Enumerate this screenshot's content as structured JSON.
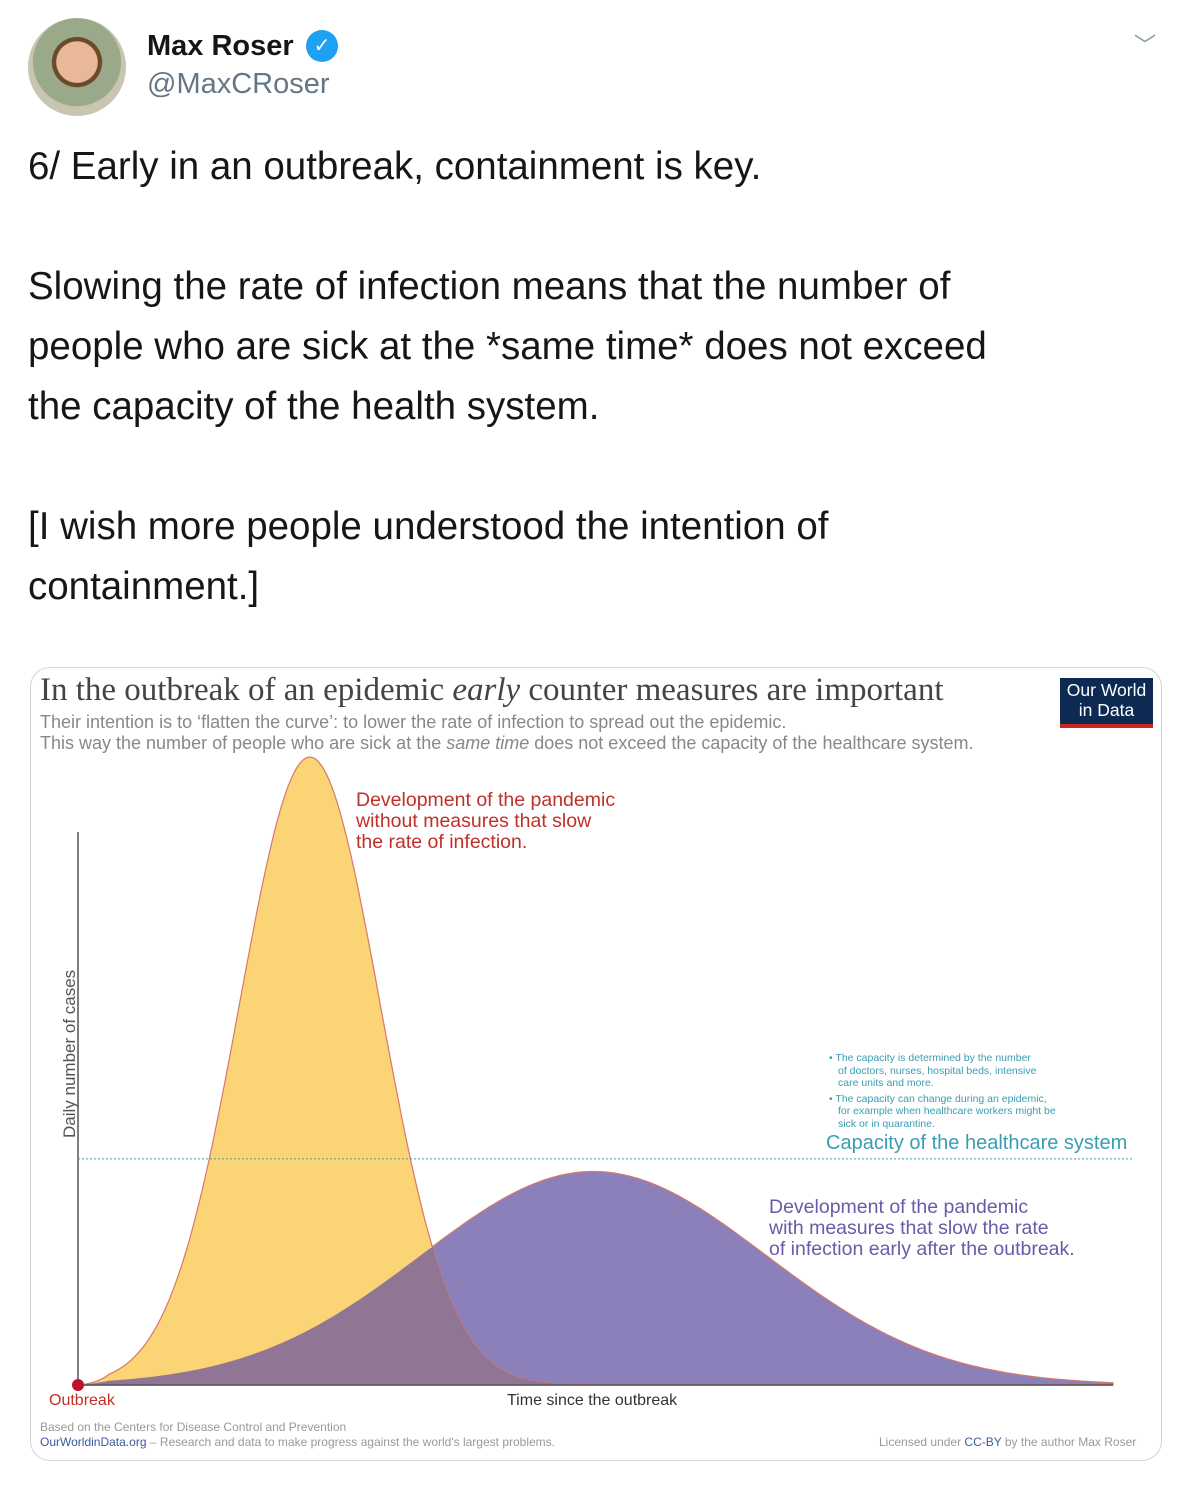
{
  "tweet": {
    "author_name": "Max Roser",
    "handle": "@MaxCRoser",
    "verified_icon": "verified-badge-icon",
    "menu_icon": "chevron-down-icon",
    "lines": [
      "6/ Early in an outbreak, containment is key.",
      "Slowing the rate of infection means that the number of",
      "people who are sick at the *same time* does not exceed",
      "the capacity of the health system.",
      "[I wish more people understood the intention of",
      "containment.]"
    ]
  },
  "chart": {
    "title_pre": "In the outbreak of an epidemic ",
    "title_em": "early",
    "title_post": " counter measures are important",
    "subtitle1": "Their intention is to ‘flatten the curve’: to lower the rate of infection to spread out the epidemic.",
    "subtitle2_pre": "This way the number of people who are sick at the ",
    "subtitle2_em": "same time",
    "subtitle2_post": " does not exceed the capacity of the healthcare system.",
    "logo_line1": "Our World",
    "logo_line2": "in Data",
    "without_label": [
      "Development of the pandemic",
      "without measures that slow",
      "the rate of infection."
    ],
    "with_label": [
      "Development of the pandemic",
      "with measures that slow the rate",
      "of infection early after the outbreak."
    ],
    "capacity_notes": [
      "• The capacity is determined by the number",
      "of doctors, nurses, hospital beds, intensive",
      "care units and more.",
      "• The capacity can change during an epidemic,",
      "for example when healthcare workers might be",
      "sick or in quarantine."
    ],
    "capacity_label": "Capacity of the healthcare system",
    "outbreak_label": "Outbreak",
    "source": "Based on the Centers for Disease Control and Prevention",
    "owid_link": "OurWorldinData.org",
    "owid_tagline": " – Research and data to make progress against the world's largest problems.",
    "license_pre": "Licensed under ",
    "license_link": "CC-BY",
    "license_post": " by the author Max Roser"
  },
  "chart_data": {
    "type": "area",
    "xlabel": "Time since the outbreak",
    "ylabel": "Daily number of cases",
    "xlim": [
      0,
      100
    ],
    "ylim": [
      0,
      1
    ],
    "capacity": 0.36,
    "series": [
      {
        "name": "Without measures",
        "peak_time": 22.4,
        "peak_value": 1.0,
        "spread": 6.8,
        "color": "#fbd26e",
        "stroke": "#d9776b"
      },
      {
        "name": "With measures",
        "peak_time": 49.8,
        "peak_value": 0.34,
        "spread": 16.7,
        "color": "#7f72b3",
        "stroke": "#d9776b"
      }
    ],
    "colors": {
      "capacity": "#3a9db3",
      "axis": "#555555",
      "outbreak_dot": "#c0102a"
    }
  }
}
